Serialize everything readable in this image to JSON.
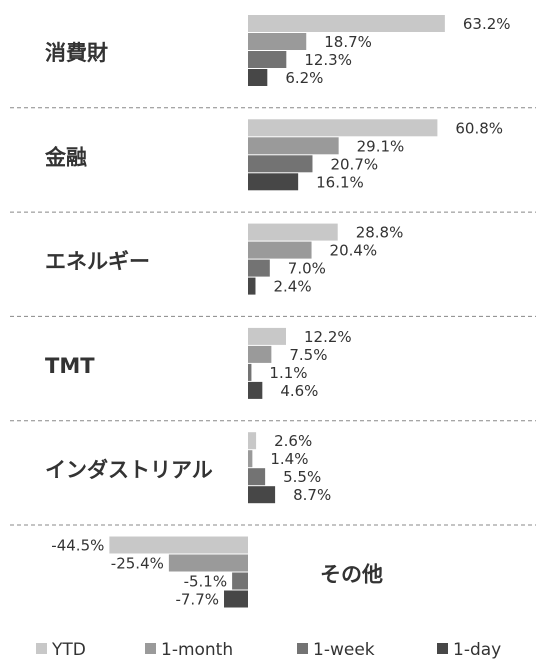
{
  "chart_data": {
    "type": "bar",
    "orientation": "horizontal",
    "groups": [
      {
        "category": "消費財",
        "values": [
          63.2,
          18.7,
          12.3,
          6.2
        ],
        "labels": [
          "63.2%",
          "18.7%",
          "12.3%",
          "6.2%"
        ]
      },
      {
        "category": "金融",
        "values": [
          60.8,
          29.1,
          20.7,
          16.1
        ],
        "labels": [
          "60.8%",
          "29.1%",
          "20.7%",
          "16.1%"
        ]
      },
      {
        "category": "エネルギー",
        "values": [
          28.8,
          20.4,
          7.0,
          2.4
        ],
        "labels": [
          "28.8%",
          "20.4%",
          "7.0%",
          "2.4%"
        ]
      },
      {
        "category": "TMT",
        "values": [
          12.2,
          7.5,
          1.1,
          4.6
        ],
        "labels": [
          "12.2%",
          "7.5%",
          "1.1%",
          "4.6%"
        ]
      },
      {
        "category": "インダストリアル",
        "values": [
          2.6,
          1.4,
          5.5,
          8.7
        ],
        "labels": [
          "2.6%",
          "1.4%",
          "5.5%",
          "8.7%"
        ]
      },
      {
        "category": "その他",
        "values": [
          -44.5,
          -25.4,
          -5.1,
          -7.7
        ],
        "labels": [
          "-44.5%",
          "-25.4%",
          "-5.1%",
          "-7.7%"
        ]
      }
    ],
    "series": [
      {
        "name": "YTD",
        "color": "#c8c8c8"
      },
      {
        "name": "1-month",
        "color": "#9a9a9a"
      },
      {
        "name": "1-week",
        "color": "#737373"
      },
      {
        "name": "1-day",
        "color": "#474747"
      }
    ],
    "legend_position": "bottom",
    "grid": false
  }
}
